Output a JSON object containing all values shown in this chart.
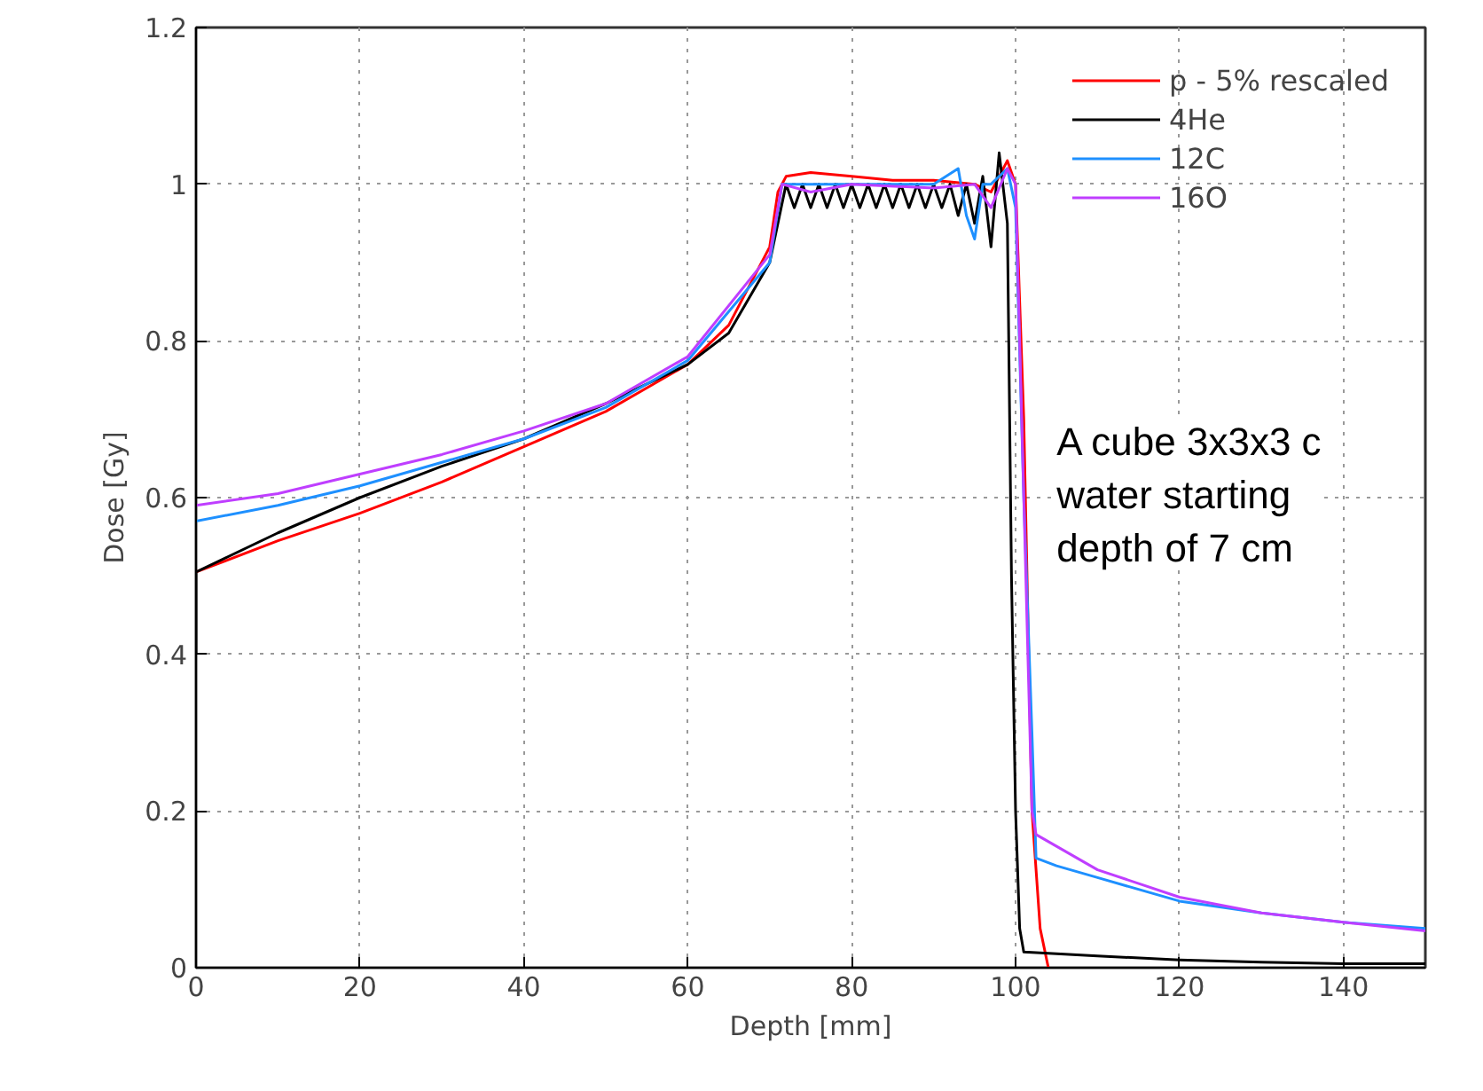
{
  "chart_data": {
    "type": "line",
    "xlabel": "Depth [mm]",
    "ylabel": "Dose [Gy]",
    "xlim": [
      0,
      150
    ],
    "ylim": [
      0,
      1.2
    ],
    "xticks": [
      0,
      20,
      40,
      60,
      80,
      100,
      120,
      140
    ],
    "yticks": [
      0,
      0.2,
      0.4,
      0.6,
      0.8,
      1,
      1.2
    ],
    "grid": true,
    "legend": "top right",
    "line_style": "solid",
    "marker": "none",
    "annotations": [
      "A cube 3x3x3 c\nwater starting\ndepth of 7 cm"
    ],
    "series": [
      {
        "name": "p - 5% rescaled",
        "color": "#ff0000",
        "x": [
          0,
          10,
          20,
          30,
          40,
          50,
          60,
          65,
          70,
          71,
          72,
          75,
          80,
          85,
          90,
          95,
          97,
          99,
          100,
          101,
          102,
          103,
          104
        ],
        "values": [
          0.505,
          0.545,
          0.58,
          0.62,
          0.665,
          0.71,
          0.77,
          0.82,
          0.92,
          0.99,
          1.01,
          1.015,
          1.01,
          1.005,
          1.005,
          1.0,
          0.99,
          1.03,
          1.0,
          0.7,
          0.2,
          0.05,
          0.0
        ]
      },
      {
        "name": "4He",
        "color": "#000000",
        "x": [
          0,
          0,
          10,
          20,
          30,
          40,
          50,
          60,
          65,
          70,
          72,
          73,
          74,
          75,
          76,
          77,
          78,
          79,
          80,
          81,
          82,
          83,
          84,
          85,
          86,
          87,
          88,
          89,
          90,
          91,
          92,
          93,
          94,
          95,
          96,
          97,
          98,
          99,
          99.5,
          100,
          100.5,
          101,
          110,
          120,
          130,
          140,
          150
        ],
        "values": [
          0.4,
          0.505,
          0.555,
          0.6,
          0.64,
          0.675,
          0.72,
          0.77,
          0.81,
          0.9,
          1.0,
          0.97,
          1.0,
          0.97,
          1.0,
          0.97,
          1.0,
          0.97,
          1.0,
          0.97,
          1.0,
          0.97,
          1.0,
          0.97,
          1.0,
          0.97,
          1.0,
          0.97,
          1.0,
          0.97,
          1.0,
          0.96,
          1.0,
          0.95,
          1.01,
          0.92,
          1.04,
          0.95,
          0.5,
          0.2,
          0.05,
          0.02,
          0.015,
          0.01,
          0.007,
          0.005,
          0.005
        ]
      },
      {
        "name": "12C",
        "color": "#1e90ff",
        "x": [
          0,
          10,
          20,
          30,
          40,
          50,
          60,
          70,
          71.5,
          75,
          80,
          90,
          93,
          94,
          95,
          96,
          97,
          99,
          100,
          101,
          102,
          102.5,
          105,
          110,
          120,
          130,
          140,
          150
        ],
        "values": [
          0.57,
          0.59,
          0.615,
          0.645,
          0.675,
          0.715,
          0.775,
          0.9,
          1.0,
          1.0,
          1.0,
          1.0,
          1.02,
          0.96,
          0.93,
          1.0,
          1.0,
          1.02,
          0.97,
          0.6,
          0.3,
          0.14,
          0.13,
          0.115,
          0.085,
          0.07,
          0.058,
          0.05
        ]
      },
      {
        "name": "16O",
        "color": "#bf3eff",
        "x": [
          0,
          10,
          20,
          30,
          40,
          50,
          60,
          70,
          71.5,
          75,
          80,
          90,
          95,
          97,
          99,
          100,
          101,
          102,
          102.5,
          110,
          120,
          130,
          140,
          150
        ],
        "values": [
          0.59,
          0.605,
          0.63,
          0.655,
          0.685,
          0.72,
          0.78,
          0.91,
          1.0,
          0.99,
          1.0,
          0.995,
          1.0,
          0.97,
          1.02,
          1.0,
          0.6,
          0.2,
          0.17,
          0.125,
          0.09,
          0.07,
          0.058,
          0.047
        ]
      }
    ]
  }
}
